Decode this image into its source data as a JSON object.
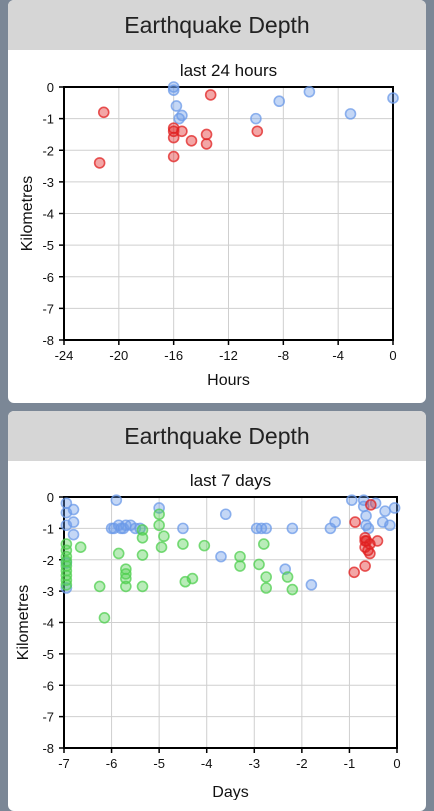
{
  "cards": [
    {
      "header": "Earthquake Depth"
    },
    {
      "header": "Earthquake Depth"
    }
  ],
  "chart_data": [
    {
      "type": "scatter",
      "title": "last 24 hours",
      "xlabel": "Hours",
      "ylabel": "Kilometres",
      "xlim": [
        -24,
        0
      ],
      "ylim": [
        -8,
        0
      ],
      "xticks": [
        -24,
        -20,
        -16,
        -12,
        -8,
        -4,
        0
      ],
      "yticks": [
        0,
        -1,
        -2,
        -3,
        -4,
        -5,
        -6,
        -7,
        -8
      ],
      "grid": true,
      "series": [
        {
          "color": "#e02020",
          "points": [
            [
              -21.1,
              -0.8
            ],
            [
              -21.4,
              -2.4
            ],
            [
              -16.0,
              -1.3
            ],
            [
              -16.0,
              -1.4
            ],
            [
              -16.0,
              -1.6
            ],
            [
              -16.0,
              -2.2
            ],
            [
              -15.4,
              -1.4
            ],
            [
              -14.7,
              -1.7
            ],
            [
              -13.6,
              -1.5
            ],
            [
              -13.6,
              -1.8
            ],
            [
              -13.3,
              -0.25
            ],
            [
              -9.9,
              -1.4
            ]
          ]
        },
        {
          "color": "#6b9ae8",
          "points": [
            [
              -16.0,
              0
            ],
            [
              -16.0,
              -0.1
            ],
            [
              -15.8,
              -0.6
            ],
            [
              -15.6,
              -1.0
            ],
            [
              -15.4,
              -0.9
            ],
            [
              -10.0,
              -1.0
            ],
            [
              -8.3,
              -0.45
            ],
            [
              -6.1,
              -0.15
            ],
            [
              -3.1,
              -0.85
            ],
            [
              0.0,
              -0.35
            ]
          ]
        }
      ]
    },
    {
      "type": "scatter",
      "title": "last 7 days",
      "xlabel": "Days",
      "ylabel": "Kilometres",
      "xlim": [
        -7,
        0
      ],
      "ylim": [
        -8,
        0
      ],
      "xticks": [
        -7,
        -6,
        -5,
        -4,
        -3,
        -2,
        -1,
        0
      ],
      "yticks": [
        0,
        -1,
        -2,
        -3,
        -4,
        -5,
        -6,
        -7,
        -8
      ],
      "grid": true,
      "series": [
        {
          "color": "#e02020",
          "points": [
            [
              -0.88,
              -0.8
            ],
            [
              -0.9,
              -2.4
            ],
            [
              -0.67,
              -1.3
            ],
            [
              -0.67,
              -1.4
            ],
            [
              -0.67,
              -1.6
            ],
            [
              -0.67,
              -2.2
            ],
            [
              -0.64,
              -1.4
            ],
            [
              -0.61,
              -1.7
            ],
            [
              -0.57,
              -1.5
            ],
            [
              -0.57,
              -1.8
            ],
            [
              -0.55,
              -0.25
            ],
            [
              -0.41,
              -1.4
            ]
          ]
        },
        {
          "color": "#6b9ae8",
          "points": [
            [
              -6.95,
              -0.2
            ],
            [
              -6.95,
              -0.5
            ],
            [
              -6.95,
              -0.9
            ],
            [
              -6.95,
              -2.1
            ],
            [
              -6.95,
              -2.9
            ],
            [
              -6.8,
              -0.4
            ],
            [
              -6.8,
              -0.8
            ],
            [
              -6.8,
              -1.2
            ],
            [
              -6.0,
              -1.0
            ],
            [
              -5.95,
              -1.0
            ],
            [
              -5.9,
              -0.1
            ],
            [
              -5.85,
              -0.9
            ],
            [
              -5.8,
              -1.0
            ],
            [
              -5.75,
              -1.0
            ],
            [
              -5.7,
              -0.9
            ],
            [
              -5.6,
              -0.9
            ],
            [
              -5.5,
              -1.0
            ],
            [
              -5.4,
              -1.0
            ],
            [
              -5.0,
              -0.35
            ],
            [
              -4.5,
              -1.0
            ],
            [
              -3.7,
              -1.9
            ],
            [
              -3.6,
              -0.55
            ],
            [
              -2.95,
              -1.0
            ],
            [
              -2.85,
              -1.0
            ],
            [
              -2.75,
              -1.0
            ],
            [
              -2.35,
              -2.3
            ],
            [
              -2.2,
              -1.0
            ],
            [
              -1.8,
              -2.8
            ],
            [
              -1.4,
              -1.0
            ],
            [
              -1.3,
              -0.8
            ],
            [
              -0.95,
              -0.1
            ],
            [
              -0.7,
              -0.1
            ],
            [
              -0.7,
              -0.3
            ],
            [
              -0.65,
              -0.6
            ],
            [
              -0.65,
              -0.9
            ],
            [
              -0.6,
              -1.0
            ],
            [
              -0.45,
              -0.2
            ],
            [
              -0.3,
              -0.8
            ],
            [
              -0.25,
              -0.45
            ],
            [
              -0.15,
              -0.9
            ],
            [
              -0.05,
              -0.35
            ]
          ]
        },
        {
          "color": "#4fcf4f",
          "points": [
            [
              -6.95,
              -1.5
            ],
            [
              -6.95,
              -1.7
            ],
            [
              -6.95,
              -1.9
            ],
            [
              -6.95,
              -2.05
            ],
            [
              -6.95,
              -2.2
            ],
            [
              -6.95,
              -2.35
            ],
            [
              -6.95,
              -2.5
            ],
            [
              -6.95,
              -2.65
            ],
            [
              -6.95,
              -2.8
            ],
            [
              -6.65,
              -1.6
            ],
            [
              -6.25,
              -2.85
            ],
            [
              -6.15,
              -3.85
            ],
            [
              -5.85,
              -1.8
            ],
            [
              -5.7,
              -2.3
            ],
            [
              -5.7,
              -2.45
            ],
            [
              -5.7,
              -2.6
            ],
            [
              -5.7,
              -2.85
            ],
            [
              -5.35,
              -1.05
            ],
            [
              -5.35,
              -1.3
            ],
            [
              -5.35,
              -1.85
            ],
            [
              -5.35,
              -2.85
            ],
            [
              -5.0,
              -0.55
            ],
            [
              -5.0,
              -0.9
            ],
            [
              -4.95,
              -1.6
            ],
            [
              -4.9,
              -1.25
            ],
            [
              -4.5,
              -1.5
            ],
            [
              -4.45,
              -2.7
            ],
            [
              -4.3,
              -2.6
            ],
            [
              -4.05,
              -1.55
            ],
            [
              -3.3,
              -1.9
            ],
            [
              -3.3,
              -2.2
            ],
            [
              -2.9,
              -2.15
            ],
            [
              -2.8,
              -1.5
            ],
            [
              -2.75,
              -2.55
            ],
            [
              -2.75,
              -2.9
            ],
            [
              -2.3,
              -2.55
            ],
            [
              -2.2,
              -2.95
            ]
          ]
        }
      ]
    }
  ]
}
